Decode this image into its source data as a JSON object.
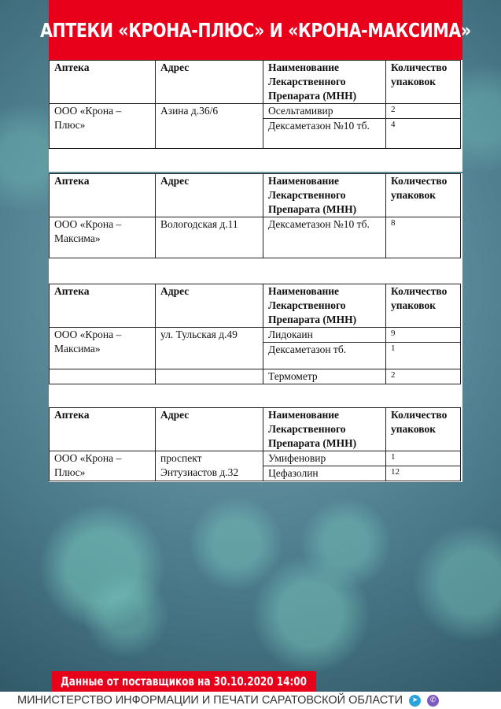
{
  "title": "Аптеки «Крона-Плюс» и «Крона-Максима»",
  "headers": [
    "Аптека",
    "Адрес",
    "Наименование Лекарственного Препарата (МНН)",
    "Количество упаковок"
  ],
  "tables": [
    {
      "rows": [
        {
          "pharmacy": "ООО «Крона – Плюс»",
          "address": "Азина д.36/6",
          "items": [
            {
              "drug": "Осельтамивир",
              "qty": "2"
            },
            {
              "drug": "Дексаметазон №10 тб.",
              "qty": "4"
            }
          ]
        }
      ]
    },
    {
      "rows": [
        {
          "pharmacy": "ООО «Крона – Максима»",
          "address": "Вологодская д.11",
          "items": [
            {
              "drug": "Дексаметазон №10 тб.",
              "qty": "8"
            }
          ]
        }
      ]
    },
    {
      "rows": [
        {
          "pharmacy": "ООО «Крона – Максима»",
          "address": "ул. Тульская д.49",
          "items": [
            {
              "drug": "Лидокаин",
              "qty": "9"
            },
            {
              "drug": "Дексаметазон тб.",
              "qty": "1"
            }
          ]
        },
        {
          "pharmacy": "",
          "address": "",
          "items": [
            {
              "drug": "Термометр",
              "qty": "2"
            }
          ]
        }
      ]
    },
    {
      "rows": [
        {
          "pharmacy": "ООО «Крона – Плюс»",
          "address": "проспект Энтузиастов д.32",
          "items": [
            {
              "drug": "Умифеновир",
              "qty": "1"
            },
            {
              "drug": "Цефазолин",
              "qty": "12"
            }
          ]
        }
      ]
    }
  ],
  "footer": {
    "date_banner": "Данные от поставщиков на 30.10.2020 14:00",
    "ministry": "МИНИСТЕРСТВО ИНФОРМАЦИИ И ПЕЧАТИ САРАТОВСКОЙ ОБЛАСТИ",
    "icons": [
      "telegram-icon",
      "viber-icon"
    ]
  },
  "colors": {
    "accent": "#e8001b",
    "telegram": "#2aa3dc",
    "viber": "#7d5bbf"
  }
}
